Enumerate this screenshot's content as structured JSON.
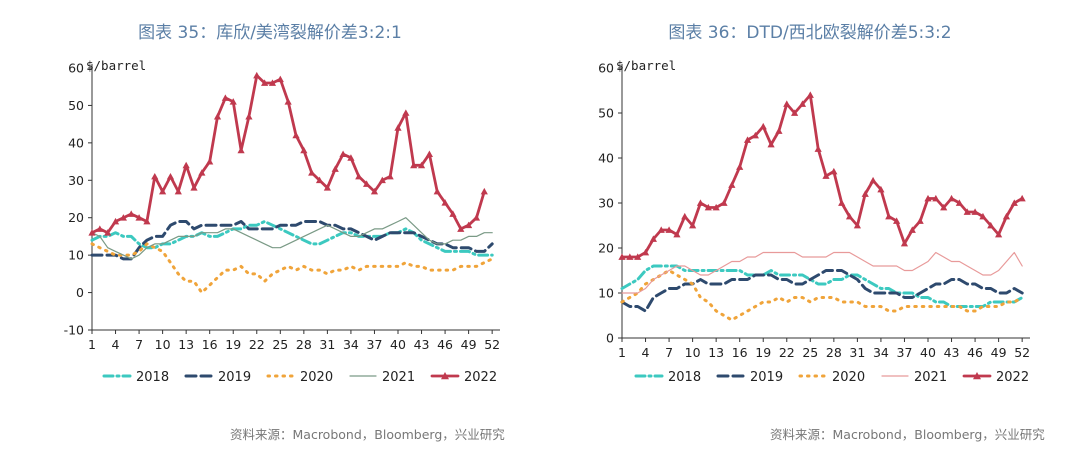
{
  "charts": [
    {
      "title": "图表 35：库欣/美湾裂解价差3:2:1",
      "source": "资料来源：Macrobond，Bloomberg，兴业研究"
    },
    {
      "title": "图表 36：DTD/西北欧裂解价差5:3:2",
      "source": "资料来源：Macrobond，Bloomberg，兴业研究"
    }
  ],
  "chart_data": [
    {
      "type": "line",
      "title": "图表 35：库欣/美湾裂解价差3:2:1",
      "unit_label": "$/barrel",
      "ylim": [
        -10,
        60
      ],
      "yticks": [
        -10,
        0,
        10,
        20,
        30,
        40,
        50,
        60
      ],
      "xlim": [
        1,
        53
      ],
      "xticks": [
        1,
        4,
        7,
        10,
        13,
        16,
        19,
        22,
        25,
        28,
        31,
        34,
        37,
        40,
        43,
        46,
        49,
        52
      ],
      "legend_position": "bottom",
      "grid": false,
      "series": [
        {
          "name": "2018",
          "color": "#3cc9c0",
          "style": "dashdot",
          "values": [
            14,
            15,
            15,
            16,
            15,
            15,
            13,
            12,
            12,
            13,
            13,
            14,
            15,
            15,
            16,
            15,
            15,
            16,
            17,
            17,
            18,
            18,
            19,
            18,
            17,
            16,
            15,
            14,
            13,
            13,
            14,
            15,
            16,
            16,
            15,
            15,
            15,
            15,
            16,
            16,
            17,
            16,
            14,
            13,
            12,
            11,
            11,
            11,
            11,
            10,
            10,
            10
          ]
        },
        {
          "name": "2019",
          "color": "#2e4a6e",
          "style": "dash",
          "values": [
            10,
            10,
            10,
            10,
            9,
            9,
            12,
            14,
            15,
            15,
            18,
            19,
            19,
            17,
            18,
            18,
            18,
            18,
            18,
            19,
            17,
            17,
            17,
            17,
            18,
            18,
            18,
            19,
            19,
            19,
            18,
            18,
            17,
            17,
            16,
            15,
            14,
            15,
            16,
            16,
            16,
            16,
            15,
            14,
            13,
            13,
            12,
            12,
            12,
            11,
            11,
            13
          ]
        },
        {
          "name": "2020",
          "color": "#f0a43a",
          "style": "dot",
          "values": [
            13,
            12,
            11,
            10,
            10,
            10,
            11,
            13,
            12,
            11,
            8,
            5,
            3,
            3,
            0,
            2,
            4,
            6,
            6,
            7,
            5,
            5,
            3,
            5,
            6,
            7,
            6,
            7,
            6,
            6,
            5,
            6,
            6,
            7,
            6,
            7,
            7,
            7,
            7,
            7,
            8,
            7,
            7,
            6,
            6,
            6,
            6,
            7,
            7,
            7,
            8,
            9
          ]
        },
        {
          "name": "2021",
          "color": "#7a9a86",
          "style": "solid",
          "values": [
            16,
            15,
            12,
            11,
            10,
            9,
            10,
            12,
            13,
            13,
            14,
            15,
            15,
            15,
            16,
            16,
            16,
            17,
            17,
            16,
            15,
            14,
            13,
            12,
            12,
            13,
            14,
            15,
            16,
            17,
            18,
            17,
            16,
            15,
            15,
            16,
            17,
            17,
            18,
            19,
            20,
            18,
            16,
            14,
            13,
            13,
            14,
            14,
            15,
            15,
            16,
            16
          ]
        },
        {
          "name": "2022",
          "color": "#c0394e",
          "style": "solid-marker",
          "values": [
            16,
            17,
            16,
            19,
            20,
            21,
            20,
            19,
            31,
            27,
            31,
            27,
            34,
            28,
            32,
            35,
            47,
            52,
            51,
            38,
            47,
            58,
            56,
            56,
            57,
            51,
            42,
            38,
            32,
            30,
            28,
            33,
            37,
            36,
            31,
            29,
            27,
            30,
            31,
            44,
            48,
            34,
            34,
            37,
            27,
            24,
            21,
            17,
            18,
            20,
            27,
            null
          ]
        }
      ]
    },
    {
      "type": "line",
      "title": "图表 36：DTD/西北欧裂解价差5:3:2",
      "unit_label": "$/barrel",
      "ylim": [
        0,
        60
      ],
      "yticks": [
        0,
        10,
        20,
        30,
        40,
        50,
        60
      ],
      "xlim": [
        1,
        53
      ],
      "xticks": [
        1,
        4,
        7,
        10,
        13,
        16,
        19,
        22,
        25,
        28,
        31,
        34,
        37,
        40,
        43,
        46,
        49,
        52
      ],
      "legend_position": "bottom",
      "grid": false,
      "series": [
        {
          "name": "2018",
          "color": "#3cc9c0",
          "style": "dashdot",
          "values": [
            11,
            12,
            13,
            15,
            16,
            16,
            16,
            16,
            15,
            15,
            15,
            15,
            15,
            15,
            15,
            15,
            14,
            14,
            14,
            15,
            14,
            14,
            14,
            14,
            13,
            12,
            12,
            13,
            13,
            14,
            14,
            13,
            12,
            11,
            11,
            10,
            10,
            10,
            9,
            9,
            8,
            8,
            7,
            7,
            7,
            7,
            7,
            8,
            8,
            8,
            8,
            9
          ]
        },
        {
          "name": "2019",
          "color": "#2e4a6e",
          "style": "dash",
          "values": [
            8,
            7,
            7,
            6,
            9,
            10,
            11,
            11,
            12,
            12,
            13,
            12,
            12,
            12,
            13,
            13,
            13,
            14,
            14,
            14,
            13,
            13,
            12,
            12,
            13,
            14,
            15,
            15,
            15,
            14,
            13,
            11,
            10,
            10,
            10,
            10,
            9,
            9,
            10,
            11,
            12,
            12,
            13,
            13,
            12,
            12,
            11,
            11,
            10,
            10,
            11,
            10
          ]
        },
        {
          "name": "2020",
          "color": "#f0a43a",
          "style": "dot",
          "values": [
            8,
            9,
            10,
            12,
            13,
            14,
            15,
            14,
            13,
            12,
            9,
            8,
            6,
            5,
            4,
            5,
            6,
            7,
            8,
            8,
            9,
            8,
            9,
            9,
            8,
            9,
            9,
            9,
            8,
            8,
            8,
            7,
            7,
            7,
            6,
            6,
            7,
            7,
            7,
            7,
            7,
            7,
            7,
            7,
            6,
            6,
            7,
            7,
            7,
            8,
            8,
            9
          ]
        },
        {
          "name": "2021",
          "color": "#e89a9a",
          "style": "solid",
          "values": [
            10,
            10,
            10,
            11,
            13,
            14,
            15,
            16,
            16,
            15,
            14,
            14,
            15,
            16,
            17,
            17,
            18,
            18,
            19,
            19,
            19,
            19,
            19,
            18,
            18,
            18,
            18,
            19,
            19,
            19,
            18,
            17,
            16,
            16,
            16,
            16,
            15,
            15,
            16,
            17,
            19,
            18,
            17,
            17,
            16,
            15,
            14,
            14,
            15,
            17,
            19,
            16
          ]
        },
        {
          "name": "2022",
          "color": "#c0394e",
          "style": "solid-marker",
          "values": [
            18,
            18,
            18,
            19,
            22,
            24,
            24,
            23,
            27,
            25,
            30,
            29,
            29,
            30,
            34,
            38,
            44,
            45,
            47,
            43,
            46,
            52,
            50,
            52,
            54,
            42,
            36,
            37,
            30,
            27,
            25,
            32,
            35,
            33,
            27,
            26,
            21,
            24,
            26,
            31,
            31,
            29,
            31,
            30,
            28,
            28,
            27,
            25,
            23,
            27,
            30,
            31
          ]
        }
      ]
    }
  ]
}
